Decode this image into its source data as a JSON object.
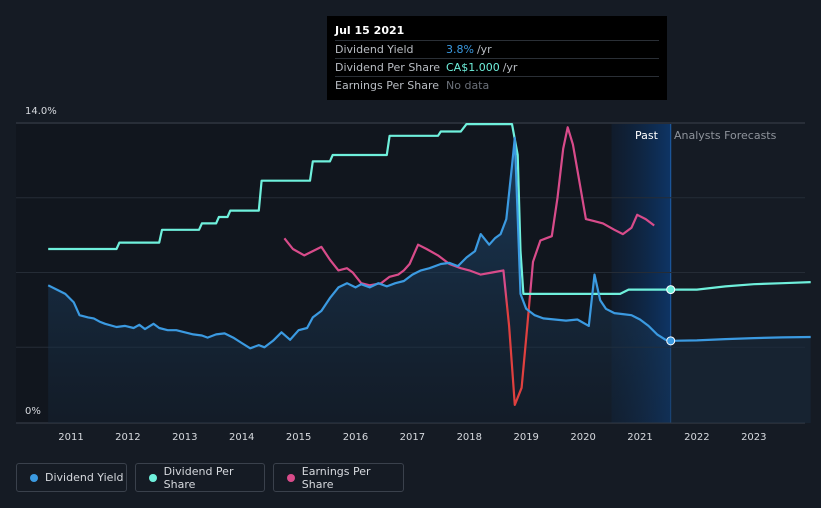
{
  "tooltip": {
    "date": "Jul 15 2021",
    "rows": [
      {
        "label": "Dividend Yield",
        "value": "3.8%",
        "unit": "/yr"
      },
      {
        "label": "Dividend Per Share",
        "value": "CA$1.000",
        "unit": "/yr"
      },
      {
        "label": "Earnings Per Share",
        "value": "No data"
      }
    ]
  },
  "section_labels": {
    "past": "Past",
    "forecast": "Analysts Forecasts"
  },
  "legend": [
    {
      "label": "Dividend Yield",
      "color": "#3b9ae1"
    },
    {
      "label": "Dividend Per Share",
      "color": "#6ff0dc"
    },
    {
      "label": "Earnings Per Share",
      "color": "#d84b8a"
    }
  ],
  "chart_data": {
    "type": "line",
    "ylim": [
      0,
      14
    ],
    "y_tick_labels": [
      "14.0%",
      "0%"
    ],
    "x_tick_labels": [
      "2011",
      "2012",
      "2013",
      "2014",
      "2015",
      "2016",
      "2017",
      "2018",
      "2019",
      "2020",
      "2021",
      "2022",
      "2023"
    ],
    "xlim": [
      2010.4,
      2024.0
    ],
    "forecast_start": 2021.54,
    "highlight_start": 2020.5,
    "grid": true,
    "legend_position": "bottom-left",
    "series": [
      {
        "name": "Dividend Yield",
        "color": "#3b9ae1",
        "fill": true,
        "x": [
          2010.6,
          2010.75,
          2010.9,
          2011.05,
          2011.15,
          2011.3,
          2011.4,
          2011.5,
          2011.6,
          2011.8,
          2011.95,
          2012.1,
          2012.2,
          2012.3,
          2012.45,
          2012.55,
          2012.7,
          2012.85,
          2013.0,
          2013.15,
          2013.3,
          2013.4,
          2013.55,
          2013.7,
          2013.85,
          2014.0,
          2014.15,
          2014.3,
          2014.4,
          2014.55,
          2014.7,
          2014.85,
          2015.0,
          2015.15,
          2015.25,
          2015.4,
          2015.55,
          2015.7,
          2015.85,
          2016.0,
          2016.1,
          2016.25,
          2016.4,
          2016.55,
          2016.7,
          2016.85,
          2017.0,
          2017.15,
          2017.3,
          2017.5,
          2017.65,
          2017.8,
          2017.95,
          2018.1,
          2018.2,
          2018.35,
          2018.45,
          2018.55,
          2018.65,
          2018.75,
          2018.8,
          2018.9,
          2019.0,
          2019.15,
          2019.3,
          2019.5,
          2019.7,
          2019.9,
          2020.1,
          2020.2,
          2020.3,
          2020.4,
          2020.55,
          2020.7,
          2020.85,
          2021.0,
          2021.15,
          2021.3,
          2021.45,
          2021.54
        ],
        "y": [
          6.4,
          6.2,
          6.0,
          5.6,
          5.0,
          4.9,
          4.85,
          4.7,
          4.6,
          4.45,
          4.5,
          4.4,
          4.55,
          4.35,
          4.6,
          4.4,
          4.3,
          4.3,
          4.2,
          4.1,
          4.05,
          3.95,
          4.1,
          4.15,
          3.95,
          3.7,
          3.45,
          3.6,
          3.5,
          3.8,
          4.2,
          3.85,
          4.3,
          4.4,
          4.9,
          5.2,
          5.8,
          6.3,
          6.5,
          6.3,
          6.45,
          6.3,
          6.5,
          6.35,
          6.5,
          6.6,
          6.9,
          7.1,
          7.2,
          7.4,
          7.45,
          7.3,
          7.7,
          8.0,
          8.8,
          8.3,
          8.6,
          8.8,
          9.5,
          12.0,
          13.3,
          6.0,
          5.3,
          5.0,
          4.85,
          4.8,
          4.75,
          4.8,
          4.5,
          6.9,
          5.7,
          5.3,
          5.1,
          5.05,
          5.0,
          4.8,
          4.5,
          4.1,
          3.85,
          3.8
        ]
      },
      {
        "name": "Dividend Yield forecast",
        "color": "#3b9ae1",
        "x": [
          2021.54,
          2022.0,
          2022.5,
          2023.0,
          2023.5,
          2024.0
        ],
        "y": [
          3.8,
          3.82,
          3.88,
          3.93,
          3.96,
          3.98
        ]
      },
      {
        "name": "Dividend Per Share",
        "color": "#6ff0dc",
        "x": [
          2010.6,
          2011.8,
          2011.85,
          2012.55,
          2012.6,
          2013.25,
          2013.3,
          2013.55,
          2013.6,
          2013.75,
          2013.8,
          2014.3,
          2014.35,
          2015.2,
          2015.25,
          2015.55,
          2015.6,
          2016.55,
          2016.6,
          2017.45,
          2017.5,
          2017.85,
          2017.95,
          2018.75,
          2018.85,
          2018.9,
          2018.95,
          2019.5,
          2020.5,
          2020.65,
          2020.8,
          2021.54
        ],
        "y": [
          8.1,
          8.1,
          8.4,
          8.4,
          9.0,
          9.0,
          9.3,
          9.3,
          9.6,
          9.6,
          9.9,
          9.9,
          11.3,
          11.3,
          12.2,
          12.2,
          12.5,
          12.5,
          13.4,
          13.4,
          13.6,
          13.6,
          13.95,
          13.95,
          12.5,
          8.0,
          6.0,
          6.0,
          6.0,
          6.0,
          6.2,
          6.2
        ]
      },
      {
        "name": "Dividend Per Share forecast",
        "color": "#6ff0dc",
        "x": [
          2021.54,
          2022.0,
          2022.5,
          2023.0,
          2023.5,
          2024.0
        ],
        "y": [
          6.2,
          6.2,
          6.35,
          6.45,
          6.5,
          6.55
        ]
      },
      {
        "name": "Earnings Per Share",
        "color": "#d84b8a",
        "x": [
          2014.75,
          2014.9,
          2015.1,
          2015.25,
          2015.4,
          2015.55,
          2015.7,
          2015.85,
          2015.95,
          2016.1,
          2016.25,
          2016.45,
          2016.6,
          2016.75,
          2016.85,
          2016.95,
          2017.1,
          2017.25,
          2017.45,
          2017.65,
          2017.85,
          2018.0,
          2018.2,
          2018.4,
          2018.6,
          2018.7,
          2018.8,
          2018.92,
          2019.02,
          2019.12,
          2019.25,
          2019.35,
          2019.45,
          2019.55,
          2019.65,
          2019.73,
          2019.82,
          2019.92,
          2020.05,
          2020.2,
          2020.35,
          2020.55,
          2020.7,
          2020.85,
          2020.95,
          2021.1,
          2021.25
        ],
        "y": [
          8.6,
          8.1,
          7.8,
          8.0,
          8.2,
          7.6,
          7.1,
          7.2,
          7.0,
          6.5,
          6.4,
          6.5,
          6.8,
          6.9,
          7.1,
          7.4,
          8.3,
          8.1,
          7.8,
          7.4,
          7.2,
          7.1,
          6.9,
          7.0,
          7.1,
          4.5,
          0.8,
          1.6,
          4.5,
          7.5,
          8.5,
          8.6,
          8.7,
          10.5,
          12.8,
          13.8,
          13.0,
          11.5,
          9.5,
          9.4,
          9.3,
          9.0,
          8.8,
          9.1,
          9.7,
          9.5,
          9.2
        ]
      }
    ]
  }
}
